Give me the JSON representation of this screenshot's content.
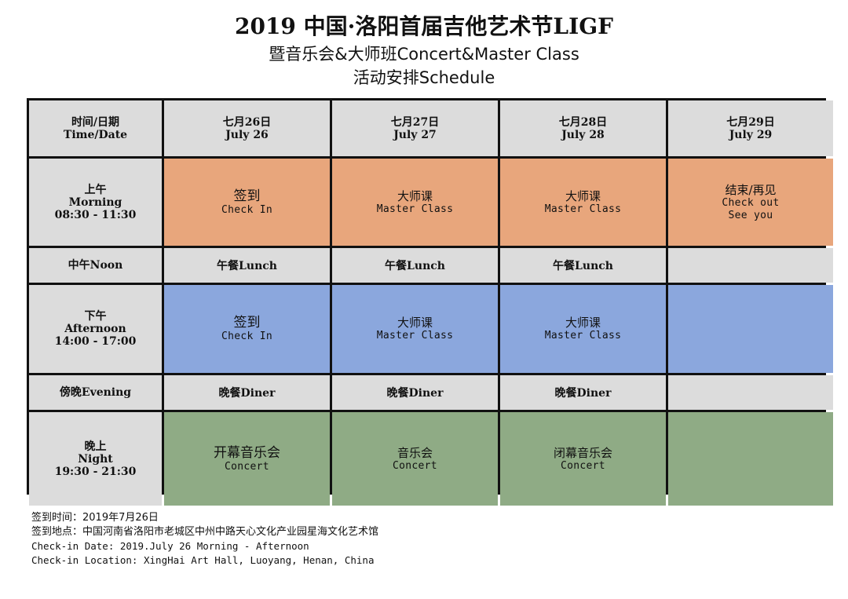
{
  "title": {
    "line1": "2019 中国·洛阳首届吉他艺术节LIGF",
    "line2": "暨音乐会&大师班Concert&Master Class",
    "line3": "活动安排Schedule"
  },
  "schedule": {
    "header": {
      "corner_zh": "时间/日期",
      "corner_en": "Time/Date",
      "days": [
        {
          "zh": "七月26日",
          "en": "July 26"
        },
        {
          "zh": "七月27日",
          "en": "July 27"
        },
        {
          "zh": "七月28日",
          "en": "July 28"
        },
        {
          "zh": "七月29日",
          "en": "July 29"
        }
      ]
    },
    "morning": {
      "label_zh": "上午",
      "label_en": "Morning",
      "time": "08:30 - 11:30",
      "cells": [
        {
          "zh": "签到",
          "en": "Check In"
        },
        {
          "zh": "大师课",
          "en": "Master Class"
        },
        {
          "zh": "大师课",
          "en": "Master Class"
        },
        {
          "zh": "结束/再见",
          "en": "Check out",
          "en2": "See you"
        }
      ]
    },
    "noon": {
      "label": "中午Noon",
      "cells": [
        "午餐Lunch",
        "午餐Lunch",
        "午餐Lunch",
        ""
      ]
    },
    "afternoon": {
      "label_zh": "下午",
      "label_en": "Afternoon",
      "time": "14:00 - 17:00",
      "cells": [
        {
          "zh": "签到",
          "en": "Check In"
        },
        {
          "zh": "大师课",
          "en": "Master Class"
        },
        {
          "zh": "大师课",
          "en": "Master Class"
        },
        {
          "zh": "",
          "en": ""
        }
      ]
    },
    "evening": {
      "label": "傍晚Evening",
      "cells": [
        "晚餐Diner",
        "晚餐Diner",
        "晚餐Diner",
        ""
      ]
    },
    "night": {
      "label_zh": "晚上",
      "label_en": "Night",
      "time": "19:30 - 21:30",
      "cells": [
        {
          "zh": "开幕音乐会",
          "en": "Concert"
        },
        {
          "zh": "音乐会",
          "en": "Concert"
        },
        {
          "zh": "闭幕音乐会",
          "en": "Concert"
        },
        {
          "zh": "",
          "en": ""
        }
      ]
    }
  },
  "notes": {
    "checkin_time_zh": "签到时间：2019年7月26日",
    "checkin_place_zh": "签到地点：中国河南省洛阳市老城区中州中路天心文化产业园星海文化艺术馆",
    "checkin_date_en": "Check-in Date: 2019.July 26 Morning - Afternoon",
    "checkin_location_en": "Check-in Location: XingHai Art Hall, Luoyang, Henan, China"
  },
  "colors": {
    "morning": "#e8a67c",
    "afternoon": "#8ba7dd",
    "night": "#8fab85",
    "header": "#dcdcdc"
  }
}
